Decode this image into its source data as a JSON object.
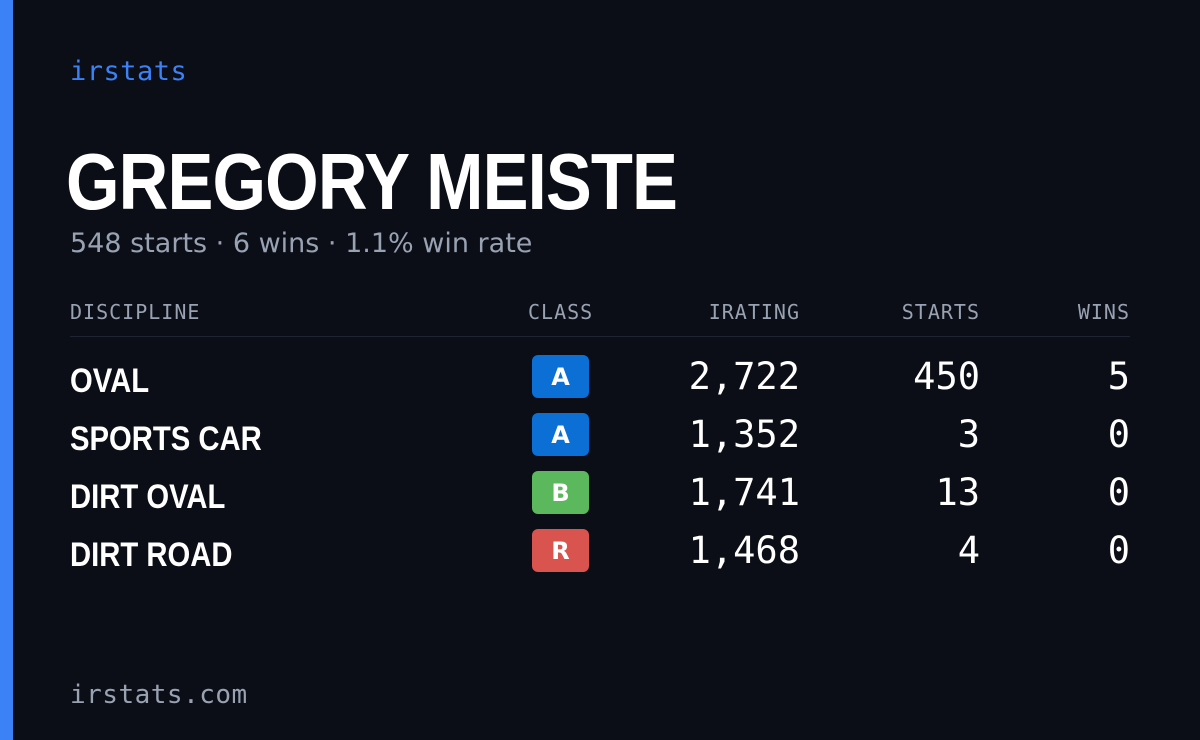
{
  "brand": {
    "name": "irstats",
    "accent_color": "#3b82f6"
  },
  "profile": {
    "name": "GREGORY MEISTE",
    "summary": "548 starts · 6 wins · 1.1% win rate"
  },
  "table": {
    "headers": {
      "discipline": "DISCIPLINE",
      "class": "CLASS",
      "irating": "IRATING",
      "starts": "STARTS",
      "wins": "WINS"
    },
    "rows": [
      {
        "discipline": "OVAL",
        "class": "A",
        "class_color": "#0b6fd6",
        "irating": "2,722",
        "starts": "450",
        "wins": "5"
      },
      {
        "discipline": "SPORTS CAR",
        "class": "A",
        "class_color": "#0b6fd6",
        "irating": "1,352",
        "starts": "3",
        "wins": "0"
      },
      {
        "discipline": "DIRT OVAL",
        "class": "B",
        "class_color": "#5cb85c",
        "irating": "1,741",
        "starts": "13",
        "wins": "0"
      },
      {
        "discipline": "DIRT ROAD",
        "class": "R",
        "class_color": "#d9534f",
        "irating": "1,468",
        "starts": "4",
        "wins": "0"
      }
    ]
  },
  "footer": {
    "url": "irstats.com"
  }
}
